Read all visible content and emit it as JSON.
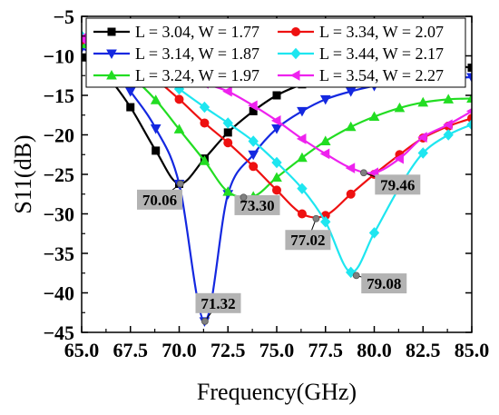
{
  "chart_data": {
    "type": "line",
    "title": "",
    "xlabel": "Frequency(GHz)",
    "ylabel": "S11(dB)",
    "xlim": [
      65.0,
      85.0
    ],
    "ylim": [
      -45,
      -5
    ],
    "xticks": [
      "65.0",
      "67.5",
      "70.0",
      "72.5",
      "75.0",
      "77.5",
      "80.0",
      "82.5",
      "85.0"
    ],
    "yticks": [
      "-5",
      "-10",
      "-15",
      "-20",
      "-25",
      "-30",
      "-35",
      "-40",
      "-45"
    ],
    "grid": false,
    "legend_position": "top",
    "series": [
      {
        "name": "L = 3.04, W = 1.77",
        "color": "#000000",
        "marker": "square",
        "x": [
          65.0,
          66.3,
          67.5,
          68.8,
          70.0,
          71.3,
          72.5,
          73.8,
          75.0,
          76.3,
          77.5,
          78.8,
          80.0,
          81.3,
          82.5,
          83.8,
          85.0
        ],
        "y": [
          -10.2,
          -12.6,
          -16.5,
          -22.0,
          -26.2,
          -23.0,
          -19.7,
          -17.0,
          -15.0,
          -13.6,
          -12.7,
          -12.0,
          -11.5,
          -11.2,
          -11.1,
          -11.2,
          -11.5
        ]
      },
      {
        "name": "L = 3.14, W = 1.87",
        "color": "#1428e0",
        "marker": "triangle-down",
        "x": [
          65.0,
          66.3,
          67.5,
          68.8,
          70.0,
          71.3,
          72.5,
          73.8,
          75.0,
          76.3,
          77.5,
          78.8,
          80.0,
          81.3,
          82.5,
          83.8,
          85.0
        ],
        "y": [
          -9.0,
          -10.8,
          -14.5,
          -19.2,
          -26.2,
          -43.6,
          -27.5,
          -22.5,
          -19.2,
          -17.0,
          -15.5,
          -14.5,
          -13.8,
          -13.2,
          -12.9,
          -12.8,
          -12.7
        ]
      },
      {
        "name": "L = 3.24, W = 1.97",
        "color": "#22dd22",
        "marker": "triangle-up",
        "x": [
          65.0,
          66.3,
          67.5,
          68.8,
          70.0,
          71.3,
          72.5,
          73.8,
          75.0,
          76.3,
          77.5,
          78.8,
          80.0,
          81.3,
          82.5,
          83.8,
          85.0
        ],
        "y": [
          -8.5,
          -10.5,
          -12.5,
          -15.6,
          -19.3,
          -23.3,
          -27.2,
          -27.8,
          -25.4,
          -22.9,
          -20.8,
          -19.0,
          -17.7,
          -16.6,
          -15.9,
          -15.5,
          -15.4
        ]
      },
      {
        "name": "L = 3.34, W = 2.07",
        "color": "#ee1111",
        "marker": "circle",
        "x": [
          65.0,
          66.3,
          67.5,
          68.8,
          70.0,
          71.3,
          72.5,
          73.8,
          75.0,
          76.3,
          77.5,
          78.8,
          80.0,
          81.3,
          82.5,
          83.8,
          85.0
        ],
        "y": [
          -8.0,
          -9.5,
          -11.0,
          -13.0,
          -15.5,
          -18.5,
          -21.0,
          -24.0,
          -27.0,
          -30.0,
          -30.2,
          -27.5,
          -25.0,
          -22.5,
          -20.4,
          -18.9,
          -17.9
        ]
      },
      {
        "name": "L = 3.44, W = 2.17",
        "color": "#1ee6f0",
        "marker": "diamond",
        "x": [
          65.0,
          66.3,
          67.5,
          68.8,
          70.0,
          71.3,
          72.5,
          73.8,
          75.0,
          76.3,
          77.5,
          78.8,
          80.0,
          81.3,
          82.5,
          83.8,
          85.0
        ],
        "y": [
          -7.5,
          -8.7,
          -10.2,
          -12.0,
          -14.2,
          -16.5,
          -18.5,
          -20.8,
          -23.5,
          -26.8,
          -31.0,
          -37.4,
          -32.4,
          -26.6,
          -22.3,
          -20.0,
          -18.7
        ]
      },
      {
        "name": "L = 3.54, W = 2.27",
        "color": "#ee22ee",
        "marker": "triangle-left",
        "x": [
          65.0,
          66.3,
          67.5,
          68.8,
          70.0,
          71.3,
          72.5,
          73.8,
          75.0,
          76.3,
          77.5,
          78.8,
          80.0,
          81.3,
          82.5,
          83.8,
          85.0
        ],
        "y": [
          -7.8,
          -8.8,
          -10.0,
          -11.2,
          -12.5,
          -13.5,
          -14.5,
          -16.3,
          -18.2,
          -20.5,
          -22.4,
          -24.2,
          -24.8,
          -23.0,
          -20.3,
          -18.7,
          -17.0
        ]
      }
    ],
    "annotations": [
      {
        "text": "70.06",
        "x": 70.06,
        "y": -26.2,
        "label_x": 69.0,
        "label_y": -28.2
      },
      {
        "text": "71.32",
        "x": 71.32,
        "y": -43.6,
        "label_x": 72.0,
        "label_y": -41.3
      },
      {
        "text": "73.30",
        "x": 73.3,
        "y": -27.9,
        "label_x": 74.0,
        "label_y": -28.9
      },
      {
        "text": "77.02",
        "x": 77.02,
        "y": -30.6,
        "label_x": 76.6,
        "label_y": -33.3
      },
      {
        "text": "79.08",
        "x": 79.08,
        "y": -37.8,
        "label_x": 80.5,
        "label_y": -38.8
      },
      {
        "text": "79.46",
        "x": 79.46,
        "y": -24.8,
        "label_x": 81.2,
        "label_y": -26.3
      }
    ]
  }
}
